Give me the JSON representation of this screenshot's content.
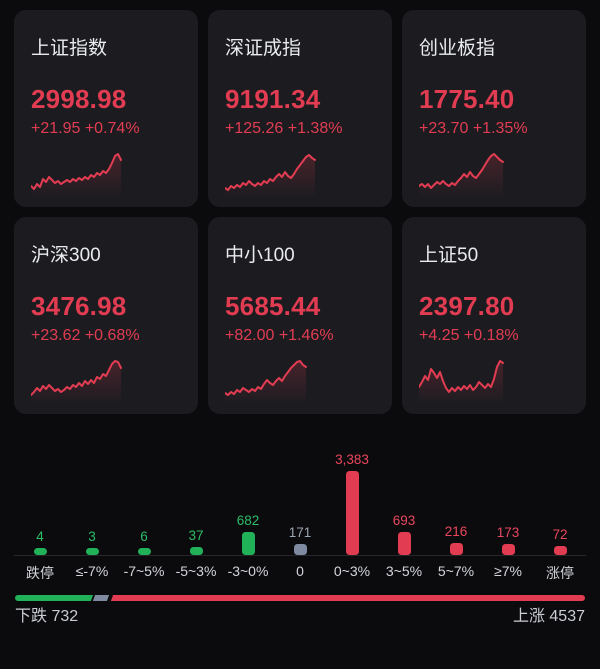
{
  "colors": {
    "up_bar": "#e23c52",
    "up_label": "#e8475d",
    "down_bar": "#21b259",
    "down_label": "#2cbd66",
    "flat_bar": "#7f8aa0",
    "flat_label": "#9aa3b2",
    "page_bg": "#0b0b0e",
    "card_bg": "#1c1c20",
    "spark_line": "#e23c52"
  },
  "indices": [
    {
      "name": "上证指数",
      "value": "2998.98",
      "change": "+21.95 +0.74%",
      "spark": [
        36,
        39,
        34,
        37,
        29,
        32,
        27,
        30,
        33,
        31,
        34,
        32,
        30,
        32,
        29,
        31,
        28,
        30,
        27,
        29,
        25,
        27,
        23,
        25,
        21,
        23,
        19,
        13,
        6,
        4,
        10
      ]
    },
    {
      "name": "深证成指",
      "value": "9191.34",
      "change": "+125.26 +1.38%",
      "spark": [
        38,
        40,
        36,
        38,
        35,
        37,
        33,
        35,
        31,
        34,
        36,
        33,
        35,
        31,
        33,
        29,
        31,
        27,
        24,
        27,
        22,
        26,
        28,
        24,
        19,
        15,
        11,
        7,
        5,
        8,
        10
      ]
    },
    {
      "name": "创业板指",
      "value": "1775.40",
      "change": "+23.70 +1.35%",
      "spark": [
        36,
        34,
        37,
        34,
        38,
        35,
        32,
        34,
        31,
        34,
        36,
        33,
        35,
        31,
        28,
        24,
        27,
        22,
        26,
        28,
        24,
        20,
        15,
        10,
        6,
        4,
        7,
        10,
        12
      ]
    },
    {
      "name": "沪深300",
      "value": "3476.98",
      "change": "+23.62 +0.68%",
      "spark": [
        38,
        35,
        31,
        34,
        29,
        32,
        28,
        31,
        34,
        32,
        35,
        33,
        30,
        32,
        28,
        30,
        26,
        29,
        24,
        27,
        23,
        26,
        20,
        22,
        17,
        19,
        13,
        7,
        4,
        5,
        11
      ]
    },
    {
      "name": "中小100",
      "value": "5685.44",
      "change": "+82.00 +1.46%",
      "spark": [
        36,
        38,
        35,
        37,
        33,
        35,
        31,
        33,
        35,
        32,
        34,
        30,
        32,
        27,
        23,
        26,
        28,
        24,
        21,
        24,
        19,
        15,
        11,
        8,
        5,
        4,
        8,
        10
      ]
    },
    {
      "name": "上证50",
      "value": "2397.80",
      "change": "+4.25 +0.18%",
      "spark": [
        30,
        25,
        19,
        23,
        12,
        16,
        21,
        15,
        24,
        31,
        35,
        31,
        34,
        30,
        33,
        29,
        32,
        28,
        33,
        30,
        25,
        28,
        31,
        27,
        30,
        22,
        10,
        4,
        6
      ]
    }
  ],
  "chart_data": {
    "type": "bar",
    "categories": [
      "跌停",
      "≤-7%",
      "-7~5%",
      "-5~3%",
      "-3~0%",
      "0",
      "0~3%",
      "3~5%",
      "5~7%",
      "≥7%",
      "涨停"
    ],
    "values": [
      4,
      3,
      6,
      37,
      682,
      171,
      3383,
      693,
      216,
      173,
      72
    ],
    "display_values": [
      "4",
      "3",
      "6",
      "37",
      "682",
      "171",
      "3,383",
      "693",
      "216",
      "173",
      "72"
    ],
    "bar_colors": [
      "down",
      "down",
      "down",
      "down",
      "down",
      "flat",
      "up",
      "up",
      "up",
      "up",
      "up"
    ],
    "ylim": [
      0,
      3383
    ],
    "grid": false,
    "legend": false
  },
  "breadth": {
    "down_label": "下跌",
    "down_count": "732",
    "up_label": "上涨",
    "up_count": "4537",
    "segments": {
      "down": 732,
      "flat": 171,
      "up": 4537
    }
  }
}
